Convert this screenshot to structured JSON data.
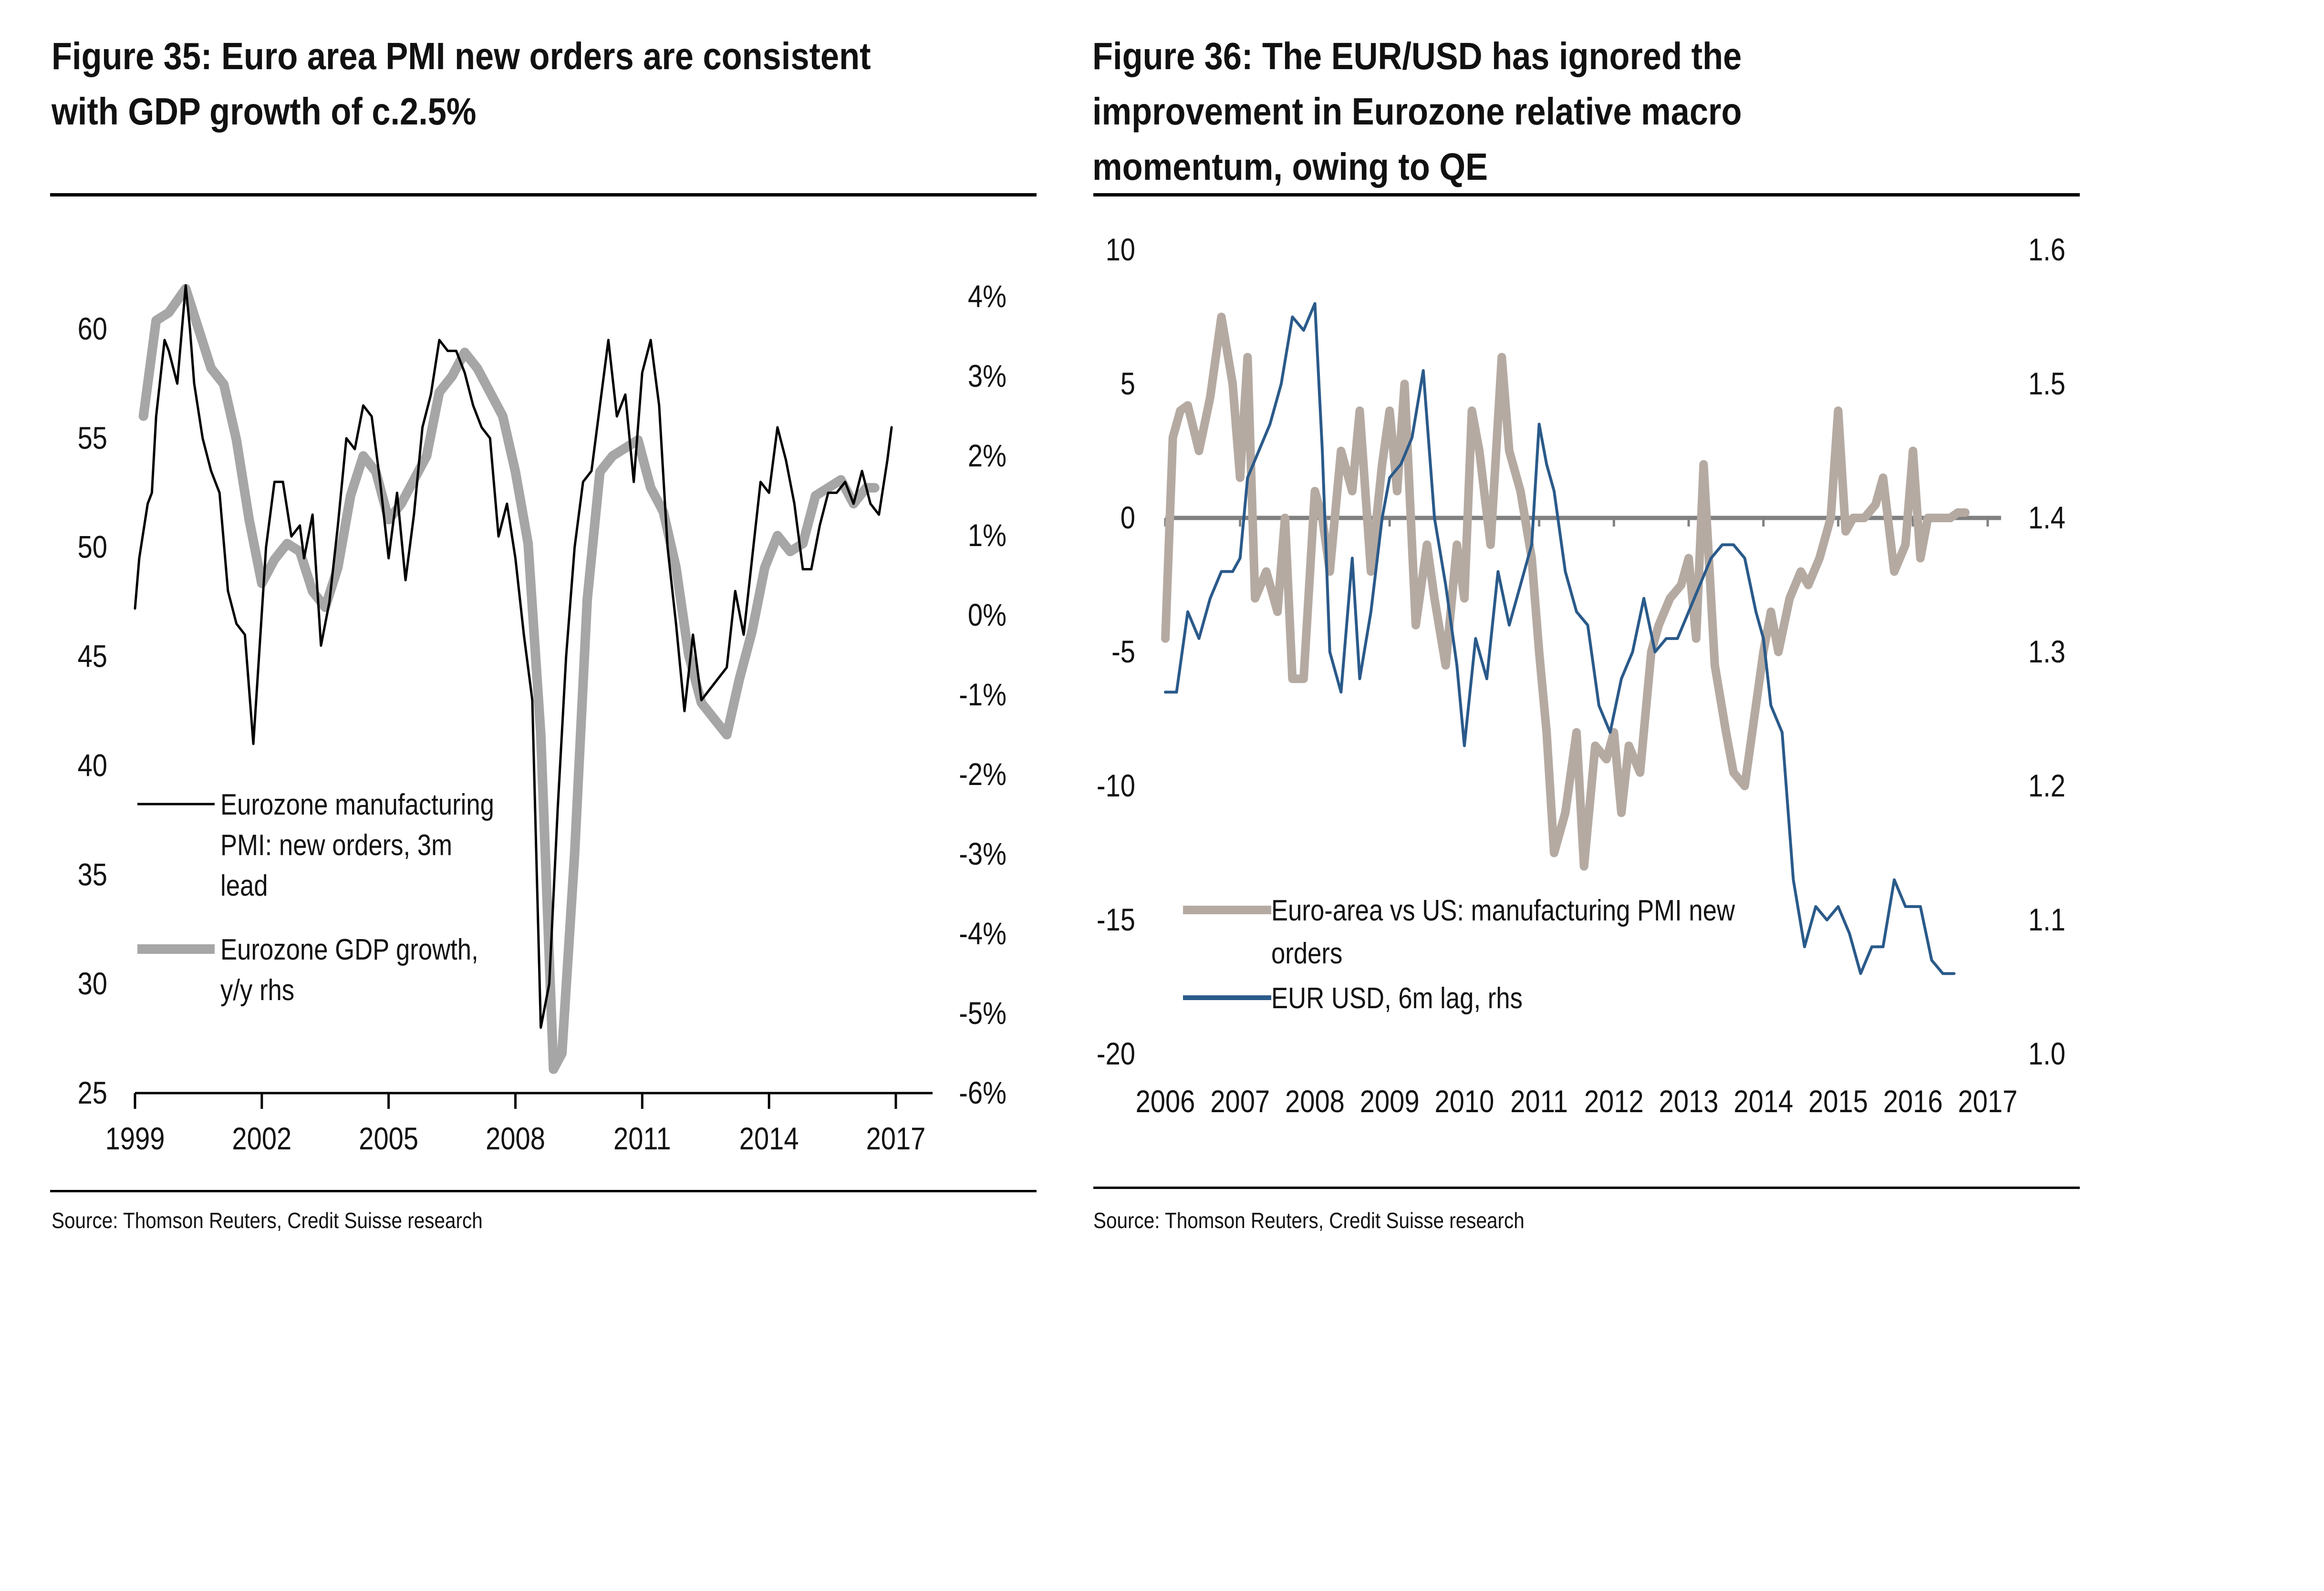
{
  "figures": [
    {
      "title_lines": [
        "Figure 35: Euro area PMI new orders are consistent",
        "with GDP growth of c.2.5%"
      ],
      "source": "Source: Thomson Reuters, Credit Suisse research"
    },
    {
      "title_lines": [
        "Figure 36: The EUR/USD has ignored the",
        "improvement in Eurozone relative macro",
        "momentum, owing to QE"
      ],
      "source": "Source: Thomson Reuters, Credit Suisse research"
    }
  ],
  "chart_data": [
    {
      "type": "line",
      "title": "Figure 35: Euro area PMI new orders are consistent with GDP growth of c.2.5%",
      "xlabel": "",
      "x_ticks": [
        "1999",
        "2002",
        "2005",
        "2008",
        "2011",
        "2014",
        "2017"
      ],
      "xlim": [
        1999,
        2017
      ],
      "y_left": {
        "ticks": [
          "25",
          "30",
          "35",
          "40",
          "45",
          "50",
          "55",
          "60"
        ],
        "ylim": [
          25,
          62.5
        ]
      },
      "y_right": {
        "ticks": [
          "-6%",
          "-5%",
          "-4%",
          "-3%",
          "-2%",
          "-1%",
          "0%",
          "1%",
          "2%",
          "3%",
          "4%"
        ],
        "ylim": [
          -6,
          4
        ]
      },
      "legend": {
        "placement": "center-left",
        "entries": [
          {
            "lines": [
              "Eurozone manufacturing",
              "PMI: new orders, 3m",
              "lead"
            ],
            "color": "#000000"
          },
          {
            "lines": [
              "Eurozone GDP growth,",
              "y/y rhs"
            ],
            "color": "#a6a6a6"
          }
        ]
      },
      "series": [
        {
          "name": "Eurozone manufacturing PMI: new orders, 3m lead",
          "axis": "left",
          "color": "#000000",
          "x": [
            1999.0,
            1999.1,
            1999.3,
            1999.4,
            1999.5,
            1999.7,
            1999.8,
            2000.0,
            2000.2,
            2000.3,
            2000.4,
            2000.6,
            2000.8,
            2001.0,
            2001.2,
            2001.4,
            2001.6,
            2001.8,
            2001.9,
            2002.1,
            2002.3,
            2002.5,
            2002.7,
            2002.9,
            2003.0,
            2003.2,
            2003.4,
            2003.6,
            2003.8,
            2004.0,
            2004.2,
            2004.4,
            2004.6,
            2004.8,
            2005.0,
            2005.2,
            2005.4,
            2005.6,
            2005.8,
            2006.0,
            2006.2,
            2006.4,
            2006.6,
            2006.8,
            2007.0,
            2007.2,
            2007.4,
            2007.6,
            2007.8,
            2008.0,
            2008.2,
            2008.4,
            2008.6,
            2008.8,
            2009.0,
            2009.2,
            2009.4,
            2009.6,
            2009.8,
            2010.0,
            2010.2,
            2010.4,
            2010.6,
            2010.8,
            2011.0,
            2011.2,
            2011.4,
            2011.6,
            2011.8,
            2012.0,
            2012.2,
            2012.4,
            2012.6,
            2012.8,
            2013.0,
            2013.2,
            2013.4,
            2013.6,
            2013.8,
            2014.0,
            2014.2,
            2014.4,
            2014.6,
            2014.8,
            2015.0,
            2015.2,
            2015.4,
            2015.6,
            2015.8,
            2016.0,
            2016.2,
            2016.4,
            2016.6,
            2016.8,
            2016.9
          ],
          "values": [
            47.2,
            49.5,
            52.0,
            52.5,
            56.0,
            59.5,
            59.0,
            57.5,
            62.0,
            60.0,
            57.5,
            55.0,
            53.5,
            52.5,
            48.0,
            46.5,
            46.0,
            41.0,
            44.0,
            50.0,
            53.0,
            53.0,
            50.5,
            51.0,
            49.5,
            51.5,
            45.5,
            47.5,
            51.0,
            55.0,
            54.5,
            56.5,
            56.0,
            53.0,
            49.5,
            52.5,
            48.5,
            51.5,
            55.5,
            57.0,
            59.5,
            59.0,
            59.0,
            58.0,
            56.5,
            55.5,
            55.0,
            50.5,
            52.0,
            49.5,
            46.0,
            43.0,
            28.0,
            30.0,
            38.0,
            45.0,
            50.0,
            53.0,
            53.5,
            56.5,
            59.5,
            56.0,
            57.0,
            53.0,
            58.0,
            59.5,
            56.5,
            50.0,
            46.5,
            42.5,
            46.0,
            43.0,
            43.5,
            44.0,
            44.5,
            48.0,
            46.0,
            49.5,
            53.0,
            52.5,
            55.5,
            54.0,
            52.0,
            49.0,
            49.0,
            51.0,
            52.5,
            52.5,
            53.0,
            52.0,
            53.5,
            52.0,
            51.5,
            54.0,
            55.5
          ]
        },
        {
          "name": "Eurozone GDP growth, y/y rhs",
          "axis": "right",
          "color": "#a6a6a6",
          "x": [
            1999.2,
            1999.5,
            1999.8,
            2000.2,
            2000.5,
            2000.8,
            2001.1,
            2001.4,
            2001.7,
            2002.0,
            2002.3,
            2002.6,
            2002.9,
            2003.2,
            2003.5,
            2003.8,
            2004.1,
            2004.4,
            2004.7,
            2005.0,
            2005.3,
            2005.6,
            2005.9,
            2006.2,
            2006.5,
            2006.8,
            2007.1,
            2007.4,
            2007.7,
            2008.0,
            2008.3,
            2008.6,
            2008.9,
            2009.1,
            2009.4,
            2009.7,
            2010.0,
            2010.3,
            2010.6,
            2010.9,
            2011.2,
            2011.5,
            2011.8,
            2012.1,
            2012.4,
            2012.7,
            2013.0,
            2013.3,
            2013.6,
            2013.9,
            2014.2,
            2014.5,
            2014.8,
            2015.1,
            2015.4,
            2015.7,
            2016.0,
            2016.3,
            2016.5
          ],
          "values": [
            2.5,
            3.7,
            3.8,
            4.1,
            3.6,
            3.1,
            2.9,
            2.2,
            1.2,
            0.4,
            0.7,
            0.9,
            0.8,
            0.3,
            0.1,
            0.6,
            1.5,
            2.0,
            1.8,
            1.2,
            1.4,
            1.7,
            2.0,
            2.8,
            3.0,
            3.3,
            3.1,
            2.8,
            2.5,
            1.8,
            0.9,
            -1.5,
            -5.7,
            -5.5,
            -3.0,
            0.2,
            1.8,
            2.0,
            2.1,
            2.2,
            1.6,
            1.3,
            0.6,
            -0.5,
            -1.1,
            -1.3,
            -1.5,
            -0.8,
            -0.2,
            0.6,
            1.0,
            0.8,
            0.9,
            1.5,
            1.6,
            1.7,
            1.4,
            1.6,
            1.6
          ]
        }
      ]
    },
    {
      "type": "line",
      "title": "Figure 36: The EUR/USD has ignored the improvement in Eurozone relative macro momentum, owing to QE",
      "x_ticks": [
        "2006",
        "2007",
        "2008",
        "2009",
        "2010",
        "2011",
        "2012",
        "2013",
        "2014",
        "2015",
        "2016",
        "2017"
      ],
      "xlim": [
        2006,
        2017
      ],
      "y_left": {
        "ticks": [
          "-20",
          "-15",
          "-10",
          "-5",
          "0",
          "5",
          "10"
        ],
        "ylim": [
          -20,
          10
        ]
      },
      "y_right": {
        "ticks": [
          "1.0",
          "1.1",
          "1.2",
          "1.3",
          "1.4",
          "1.5",
          "1.6"
        ],
        "ylim": [
          1.0,
          1.6
        ]
      },
      "zero_line": true,
      "legend": {
        "placement": "bottom-left",
        "entries": [
          {
            "lines": [
              "Euro-area vs US: manufacturing PMI new",
              "orders"
            ],
            "color": "#b5aaa2"
          },
          {
            "lines": [
              "EUR USD, 6m lag, rhs"
            ],
            "color": "#2a5a8a"
          }
        ]
      },
      "series": [
        {
          "name": "Euro-area vs US: manufacturing PMI new orders",
          "axis": "left",
          "color": "#b5aaa2",
          "x": [
            2006.0,
            2006.1,
            2006.2,
            2006.3,
            2006.45,
            2006.6,
            2006.75,
            2006.9,
            2007.0,
            2007.1,
            2007.2,
            2007.35,
            2007.5,
            2007.6,
            2007.7,
            2007.85,
            2008.0,
            2008.1,
            2008.2,
            2008.35,
            2008.5,
            2008.6,
            2008.75,
            2008.9,
            2009.0,
            2009.1,
            2009.2,
            2009.35,
            2009.5,
            2009.6,
            2009.75,
            2009.9,
            2010.0,
            2010.1,
            2010.2,
            2010.35,
            2010.5,
            2010.6,
            2010.75,
            2010.9,
            2011.0,
            2011.1,
            2011.2,
            2011.35,
            2011.5,
            2011.6,
            2011.75,
            2011.9,
            2012.0,
            2012.1,
            2012.2,
            2012.35,
            2012.5,
            2012.6,
            2012.75,
            2012.9,
            2013.0,
            2013.1,
            2013.2,
            2013.35,
            2013.5,
            2013.6,
            2013.75,
            2013.9,
            2014.0,
            2014.1,
            2014.2,
            2014.35,
            2014.5,
            2014.6,
            2014.75,
            2014.9,
            2015.0,
            2015.1,
            2015.2,
            2015.35,
            2015.5,
            2015.6,
            2015.75,
            2015.9,
            2016.0,
            2016.1,
            2016.2,
            2016.35,
            2016.5,
            2016.6,
            2016.7
          ],
          "values": [
            -4.5,
            3.0,
            4.0,
            4.2,
            2.5,
            4.5,
            7.5,
            5.0,
            1.5,
            6.0,
            -3.0,
            -2.0,
            -3.5,
            0.0,
            -6.0,
            -6.0,
            1.0,
            0.0,
            -2.0,
            2.5,
            1.0,
            4.0,
            -2.0,
            2.0,
            4.0,
            1.0,
            5.0,
            -4.0,
            -1.0,
            -3.0,
            -5.5,
            -1.0,
            -3.0,
            4.0,
            2.5,
            -1.0,
            6.0,
            2.5,
            1.0,
            -1.5,
            -5.0,
            -8.0,
            -12.5,
            -11.0,
            -8.0,
            -13.0,
            -8.5,
            -9.0,
            -8.0,
            -11.0,
            -8.5,
            -9.5,
            -5.0,
            -4.0,
            -3.0,
            -2.5,
            -1.5,
            -4.5,
            2.0,
            -5.5,
            -8.0,
            -9.5,
            -10.0,
            -7.0,
            -5.0,
            -3.5,
            -5.0,
            -3.0,
            -2.0,
            -2.5,
            -1.5,
            0.0,
            4.0,
            -0.5,
            0.0,
            0.0,
            0.5,
            1.5,
            -2.0,
            -1.0,
            2.5,
            -1.5,
            0.0,
            0.0,
            0.0,
            0.2,
            0.2
          ]
        },
        {
          "name": "EUR USD, 6m lag, rhs",
          "axis": "right",
          "color": "#2a5a8a",
          "x": [
            2006.0,
            2006.15,
            2006.3,
            2006.45,
            2006.6,
            2006.75,
            2006.9,
            2007.0,
            2007.1,
            2007.25,
            2007.4,
            2007.55,
            2007.7,
            2007.85,
            2008.0,
            2008.1,
            2008.2,
            2008.35,
            2008.5,
            2008.6,
            2008.75,
            2008.9,
            2009.0,
            2009.15,
            2009.3,
            2009.45,
            2009.6,
            2009.75,
            2009.9,
            2010.0,
            2010.15,
            2010.3,
            2010.45,
            2010.6,
            2010.75,
            2010.9,
            2011.0,
            2011.1,
            2011.2,
            2011.35,
            2011.5,
            2011.65,
            2011.8,
            2011.95,
            2012.1,
            2012.25,
            2012.4,
            2012.55,
            2012.7,
            2012.85,
            2013.0,
            2013.15,
            2013.3,
            2013.45,
            2013.6,
            2013.75,
            2013.9,
            2014.0,
            2014.1,
            2014.25,
            2014.4,
            2014.55,
            2014.7,
            2014.85,
            2015.0,
            2015.15,
            2015.3,
            2015.45,
            2015.6,
            2015.75,
            2015.9,
            2016.0,
            2016.1,
            2016.25,
            2016.4,
            2016.55
          ],
          "values": [
            1.27,
            1.27,
            1.33,
            1.31,
            1.34,
            1.36,
            1.36,
            1.37,
            1.43,
            1.45,
            1.47,
            1.5,
            1.55,
            1.54,
            1.56,
            1.45,
            1.3,
            1.27,
            1.37,
            1.28,
            1.33,
            1.4,
            1.43,
            1.44,
            1.46,
            1.51,
            1.4,
            1.35,
            1.29,
            1.23,
            1.31,
            1.28,
            1.36,
            1.32,
            1.35,
            1.38,
            1.47,
            1.44,
            1.42,
            1.36,
            1.33,
            1.32,
            1.26,
            1.24,
            1.28,
            1.3,
            1.34,
            1.3,
            1.31,
            1.31,
            1.33,
            1.35,
            1.37,
            1.38,
            1.38,
            1.37,
            1.33,
            1.31,
            1.26,
            1.24,
            1.13,
            1.08,
            1.11,
            1.1,
            1.11,
            1.09,
            1.06,
            1.08,
            1.08,
            1.13,
            1.11,
            1.11,
            1.11,
            1.07,
            1.06,
            1.06
          ]
        }
      ]
    }
  ]
}
